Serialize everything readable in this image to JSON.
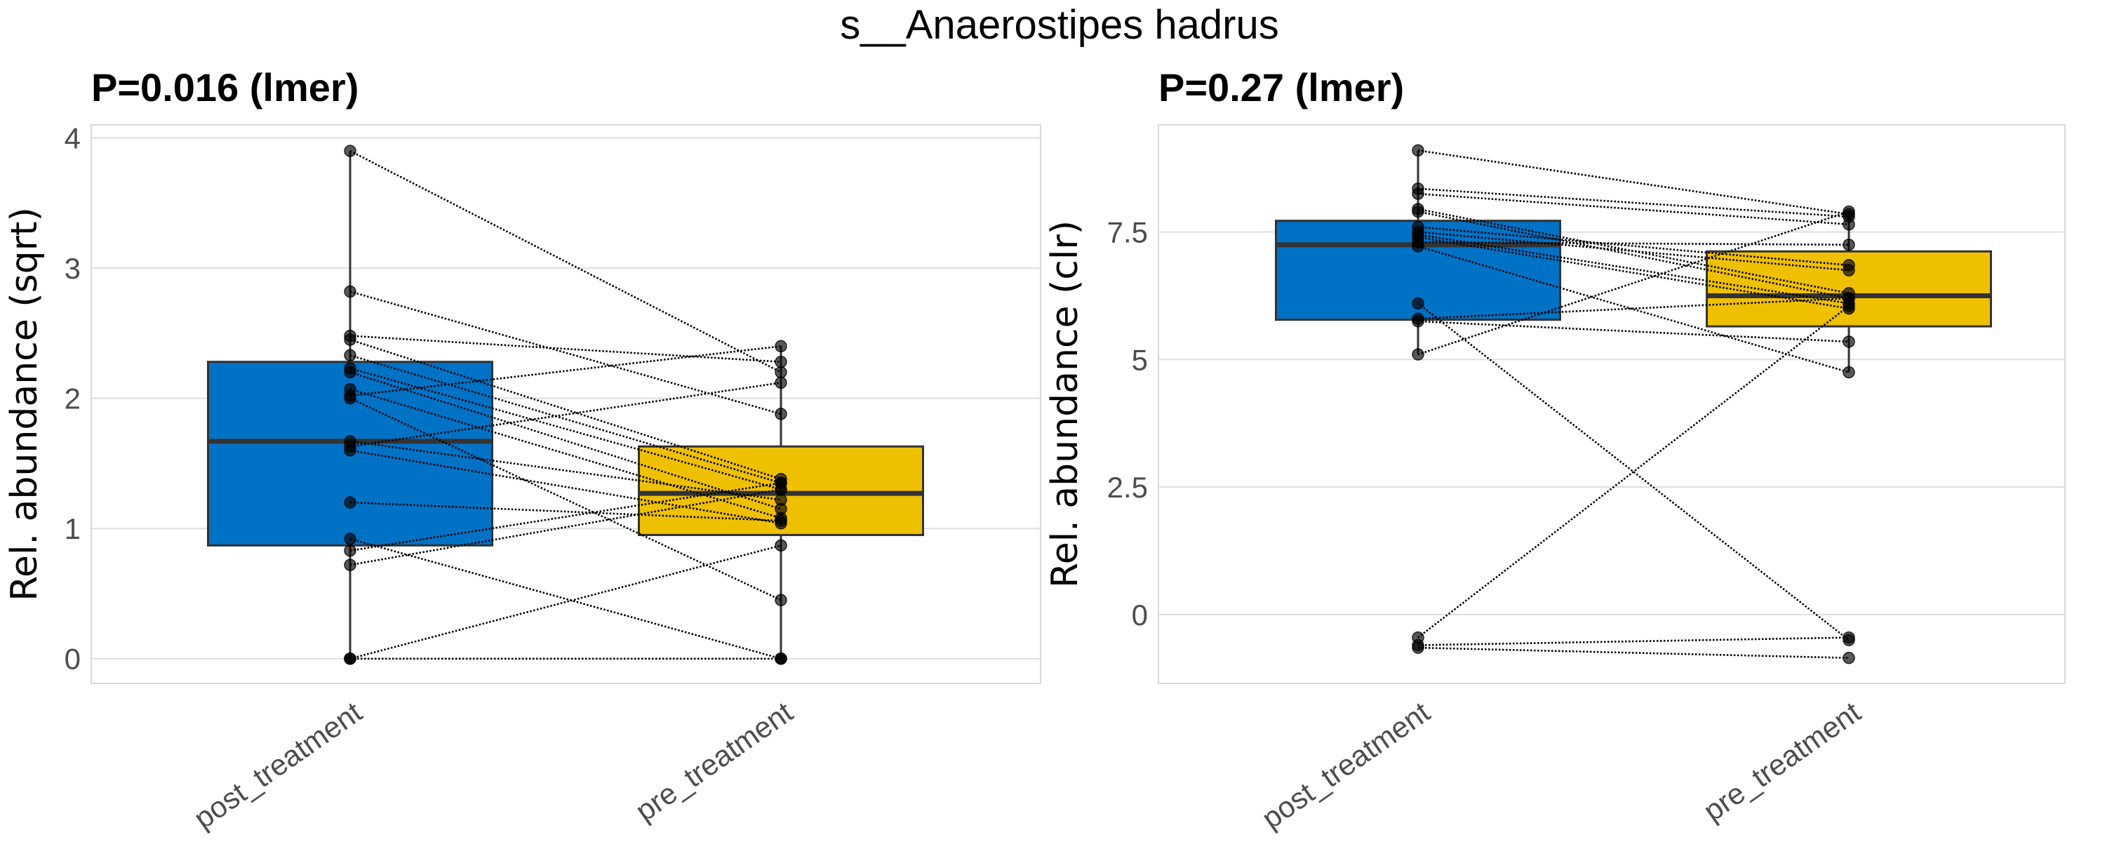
{
  "title": "s__Anaerostipes hadrus",
  "chart_data": [
    {
      "type": "box",
      "title": "P=0.016 (lmer)",
      "xlabel": "",
      "ylabel": "Rel. abundance (sqrt)",
      "categories": [
        "post_treatment",
        "pre_treatment"
      ],
      "colors": {
        "post_treatment": "#0072C6",
        "pre_treatment": "#EFC000"
      },
      "ylim": [
        -0.19,
        4.1
      ],
      "yticks": [
        0,
        1,
        2,
        3,
        4
      ],
      "ytick_labels": [
        "0",
        "1",
        "2",
        "3",
        "4"
      ],
      "grid": true,
      "boxes": [
        {
          "category": "post_treatment",
          "q1": 0.87,
          "median": 1.67,
          "q3": 2.28,
          "whisker_low": 0,
          "whisker_high": 3.9
        },
        {
          "category": "pre_treatment",
          "q1": 0.95,
          "median": 1.27,
          "q3": 1.63,
          "whisker_low": 0,
          "whisker_high": 2.4
        }
      ],
      "pairs": [
        [
          3.9,
          2.2
        ],
        [
          2.82,
          1.88
        ],
        [
          2.48,
          2.28
        ],
        [
          2.45,
          1.38
        ],
        [
          2.33,
          1.35
        ],
        [
          2.23,
          1.3
        ],
        [
          2.2,
          1.15
        ],
        [
          2.07,
          1.08
        ],
        [
          2.02,
          2.4
        ],
        [
          2.0,
          0.45
        ],
        [
          1.67,
          1.22
        ],
        [
          1.63,
          2.12
        ],
        [
          1.6,
          1.04
        ],
        [
          1.2,
          1.06
        ],
        [
          0.92,
          0
        ],
        [
          0.83,
          1.35
        ],
        [
          0.72,
          1.3
        ],
        [
          0,
          0.87
        ],
        [
          0,
          0
        ],
        [
          0,
          0
        ]
      ]
    },
    {
      "type": "box",
      "title": "P=0.27 (lmer)",
      "xlabel": "",
      "ylabel": "Rel. abundance (clr)",
      "categories": [
        "post_treatment",
        "pre_treatment"
      ],
      "colors": {
        "post_treatment": "#0072C6",
        "pre_treatment": "#EFC000"
      },
      "ylim": [
        -1.35,
        9.6
      ],
      "yticks": [
        0,
        2.5,
        5,
        7.5
      ],
      "ytick_labels": [
        "0",
        "2.5",
        "5",
        "7.5"
      ],
      "grid": true,
      "boxes": [
        {
          "category": "post_treatment",
          "q1": 5.78,
          "median": 7.25,
          "q3": 7.72,
          "whisker_low": 5.1,
          "whisker_high": 9.1
        },
        {
          "category": "pre_treatment",
          "q1": 5.65,
          "median": 6.25,
          "q3": 7.12,
          "whisker_low": 4.75,
          "whisker_high": 7.9
        }
      ],
      "pairs": [
        [
          9.1,
          7.85
        ],
        [
          8.35,
          7.8
        ],
        [
          8.25,
          7.65
        ],
        [
          7.95,
          6.3
        ],
        [
          7.9,
          6.2
        ],
        [
          7.6,
          6.85
        ],
        [
          7.5,
          6.75
        ],
        [
          7.45,
          6.1
        ],
        [
          7.4,
          6.0
        ],
        [
          7.3,
          7.25
        ],
        [
          7.22,
          4.75
        ],
        [
          6.1,
          -0.5
        ],
        [
          5.8,
          6.2
        ],
        [
          5.75,
          5.35
        ],
        [
          5.1,
          7.9
        ],
        [
          -0.45,
          6.05
        ],
        [
          -0.6,
          -0.45
        ],
        [
          -0.65,
          -0.85
        ]
      ]
    }
  ]
}
